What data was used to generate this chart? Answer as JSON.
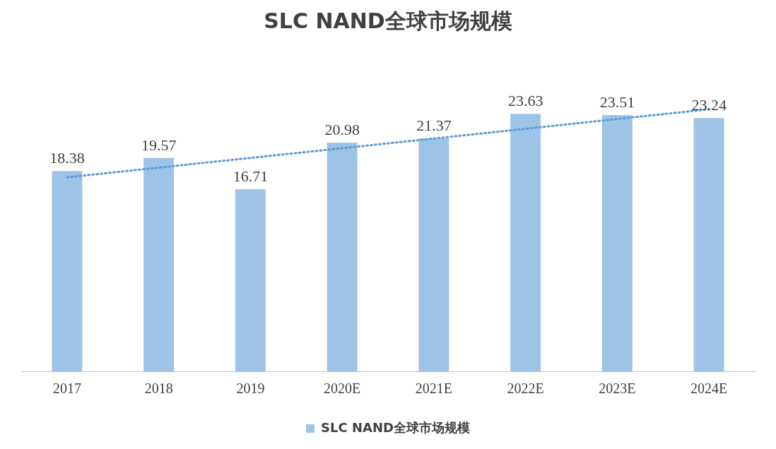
{
  "chart_data": {
    "type": "bar",
    "title": "SLC NAND全球市场规模",
    "categories": [
      "2017",
      "2018",
      "2019",
      "2020E",
      "2021E",
      "2022E",
      "2023E",
      "2024E"
    ],
    "series": [
      {
        "name": "SLC NAND全球市场规模",
        "color": "#9dc3e6",
        "values": [
          18.38,
          19.57,
          16.71,
          20.98,
          21.37,
          23.63,
          23.51,
          23.24
        ],
        "value_labels": [
          "18.38",
          "19.57",
          "16.71",
          "20.98",
          "21.37",
          "23.63",
          "23.51",
          "23.24"
        ]
      },
      {
        "type": "line",
        "color": "#5b9bd5",
        "line_style": "dotted",
        "marker": "none",
        "values": [
          17.8,
          18.69,
          19.58,
          20.47,
          21.36,
          22.25,
          23.15,
          24.04
        ]
      }
    ],
    "grid": false,
    "legend": "bottom"
  }
}
